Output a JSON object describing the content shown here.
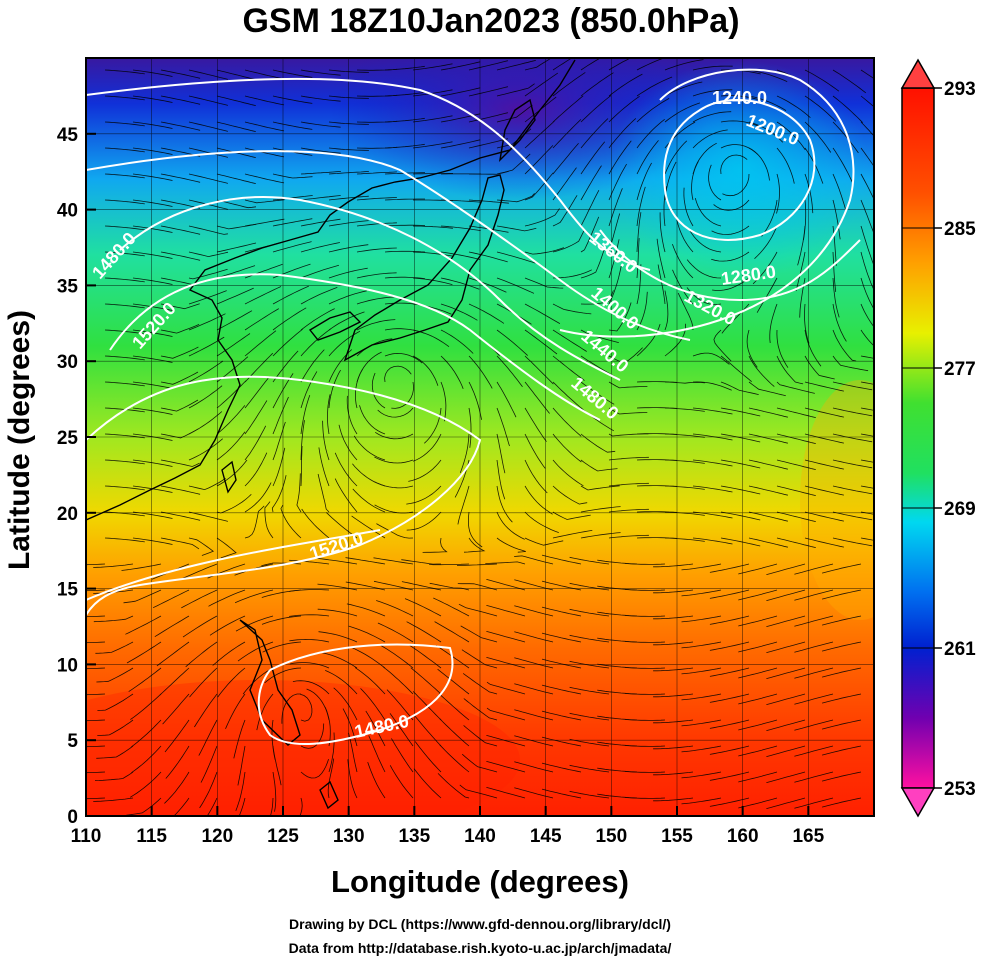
{
  "title": "GSM 18Z10Jan2023 (850.0hPa)",
  "axes": {
    "xlabel": "Longitude (degrees)",
    "ylabel": "Latitude  (degrees)",
    "xticks": [
      "110",
      "115",
      "120",
      "125",
      "130",
      "135",
      "140",
      "145",
      "150",
      "155",
      "160",
      "165"
    ],
    "yticks": [
      "0",
      "5",
      "10",
      "15",
      "20",
      "25",
      "30",
      "35",
      "40",
      "45"
    ],
    "xlim": [
      110,
      170
    ],
    "ylim": [
      0,
      50
    ]
  },
  "colorbar": {
    "labels": [
      "293",
      "285",
      "277",
      "269",
      "261",
      "253"
    ],
    "range": [
      253,
      293
    ],
    "colors": [
      "#ff1090",
      "#7000b0",
      "#0020d0",
      "#0070f0",
      "#00d8f0",
      "#20e060",
      "#40e030",
      "#e8f000",
      "#ffa000",
      "#ff5000",
      "#ff1000"
    ]
  },
  "contour_labels": [
    "1240.0",
    "1200.0",
    "1280.0",
    "1320.0",
    "1360.0",
    "1400.0",
    "1440.0",
    "1480.0",
    "1480.0",
    "1520.0",
    "1520.0",
    "1480.0"
  ],
  "credits": {
    "line1": "Drawing by DCL (https://www.gfd-dennou.org/library/dcl/)",
    "line2": "Data from http://database.rish.kyoto-u.ac.jp/arch/jmadata/"
  }
}
